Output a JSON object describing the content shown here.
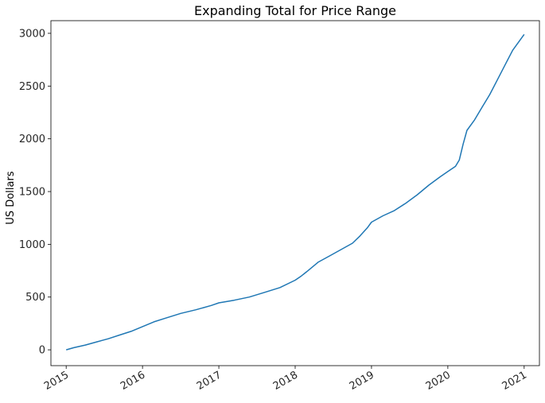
{
  "chart_data": {
    "type": "line",
    "title": "Expanding Total for Price Range",
    "xlabel": "",
    "ylabel": "US Dollars",
    "xlim": [
      2014.8,
      2021.2
    ],
    "ylim": [
      -150,
      3120
    ],
    "grid": false,
    "line_color": "#1f77b4",
    "x_ticks": [
      {
        "value": 2015,
        "label": "2015"
      },
      {
        "value": 2016,
        "label": "2016"
      },
      {
        "value": 2017,
        "label": "2017"
      },
      {
        "value": 2018,
        "label": "2018"
      },
      {
        "value": 2019,
        "label": "2019"
      },
      {
        "value": 2020,
        "label": "2020"
      },
      {
        "value": 2021,
        "label": "2021"
      }
    ],
    "y_ticks": [
      {
        "value": 0,
        "label": "0"
      },
      {
        "value": 500,
        "label": "500"
      },
      {
        "value": 1000,
        "label": "1000"
      },
      {
        "value": 1500,
        "label": "1500"
      },
      {
        "value": 2000,
        "label": "2000"
      },
      {
        "value": 2500,
        "label": "2500"
      },
      {
        "value": 3000,
        "label": "3000"
      }
    ],
    "series": [
      {
        "points": [
          [
            2015.0,
            0
          ],
          [
            2015.1,
            20
          ],
          [
            2015.25,
            45
          ],
          [
            2015.4,
            75
          ],
          [
            2015.55,
            105
          ],
          [
            2015.7,
            140
          ],
          [
            2015.85,
            175
          ],
          [
            2016.0,
            220
          ],
          [
            2016.15,
            265
          ],
          [
            2016.3,
            300
          ],
          [
            2016.5,
            345
          ],
          [
            2016.7,
            380
          ],
          [
            2016.9,
            420
          ],
          [
            2017.0,
            445
          ],
          [
            2017.2,
            470
          ],
          [
            2017.4,
            500
          ],
          [
            2017.6,
            545
          ],
          [
            2017.8,
            590
          ],
          [
            2018.0,
            660
          ],
          [
            2018.08,
            700
          ],
          [
            2018.15,
            740
          ],
          [
            2018.3,
            830
          ],
          [
            2018.45,
            890
          ],
          [
            2018.6,
            950
          ],
          [
            2018.75,
            1010
          ],
          [
            2018.85,
            1080
          ],
          [
            2018.95,
            1160
          ],
          [
            2019.0,
            1210
          ],
          [
            2019.15,
            1270
          ],
          [
            2019.3,
            1320
          ],
          [
            2019.45,
            1390
          ],
          [
            2019.6,
            1470
          ],
          [
            2019.75,
            1560
          ],
          [
            2019.9,
            1640
          ],
          [
            2020.0,
            1690
          ],
          [
            2020.1,
            1740
          ],
          [
            2020.15,
            1800
          ],
          [
            2020.2,
            1950
          ],
          [
            2020.25,
            2080
          ],
          [
            2020.35,
            2180
          ],
          [
            2020.45,
            2300
          ],
          [
            2020.55,
            2420
          ],
          [
            2020.65,
            2560
          ],
          [
            2020.75,
            2700
          ],
          [
            2020.85,
            2840
          ],
          [
            2020.95,
            2940
          ],
          [
            2021.0,
            2990
          ]
        ]
      }
    ]
  }
}
